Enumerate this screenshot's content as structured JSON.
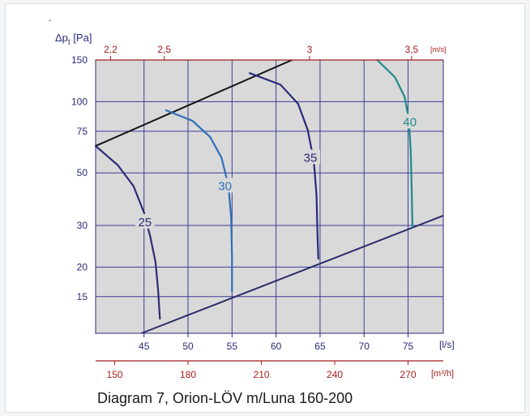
{
  "chart_data": {
    "type": "line",
    "title": "",
    "caption": "Diagram 7, Orion-LÖV m/Luna 160-200",
    "stray_mark": "-",
    "y_axis": {
      "label_prefix": "Δp",
      "label_sub": "t",
      "label_suffix": " [Pa]",
      "scale": "log",
      "range": [
        10.5,
        150
      ],
      "ticks": [
        15,
        20,
        30,
        50,
        75,
        100,
        150
      ],
      "color": "#2a2a7a"
    },
    "x_axis_primary": {
      "unit": "[l/s]",
      "range": [
        39.5,
        79
      ],
      "ticks": [
        45,
        50,
        55,
        60,
        65,
        70,
        75
      ],
      "color": "#2a2a7a"
    },
    "x_axis_volume": {
      "unit": "[m³/h]",
      "ticks": [
        150,
        180,
        210,
        240,
        270
      ],
      "color": "#a51d1d"
    },
    "x_axis_velocity": {
      "unit": "[m/s]",
      "ticks": [
        "2,2",
        "2,5",
        "3",
        "3,5"
      ],
      "color": "#a51d1d"
    },
    "grid": true,
    "plot_background": "#d9d9d9",
    "grid_color": "#3b3b9a",
    "boundary_lines": [
      {
        "name": "upper",
        "color": "#111111",
        "points": [
          [
            39.5,
            65
          ],
          [
            61.8,
            150
          ]
        ]
      },
      {
        "name": "lower",
        "color": "#2a2a6a",
        "points": [
          [
            44.7,
            10.5
          ],
          [
            79,
            33
          ]
        ]
      }
    ],
    "series": [
      {
        "name": "25",
        "color": "#2d2b78",
        "points": [
          [
            39.5,
            65
          ],
          [
            42,
            54
          ],
          [
            43.8,
            44
          ],
          [
            45,
            34
          ],
          [
            45.7,
            27
          ],
          [
            46.3,
            21
          ],
          [
            46.6,
            16
          ],
          [
            46.8,
            12.1
          ]
        ]
      },
      {
        "name": "30",
        "color": "#2f6fb8",
        "points": [
          [
            47.5,
            92
          ],
          [
            50.5,
            83
          ],
          [
            52.5,
            71
          ],
          [
            53.8,
            58
          ],
          [
            54.6,
            44
          ],
          [
            54.9,
            32
          ],
          [
            55,
            22
          ],
          [
            55,
            15.8
          ]
        ]
      },
      {
        "name": "35",
        "color": "#2a2a7a",
        "points": [
          [
            57,
            132
          ],
          [
            60.5,
            118
          ],
          [
            62.5,
            98
          ],
          [
            63.6,
            76
          ],
          [
            64.3,
            56
          ],
          [
            64.6,
            40
          ],
          [
            64.7,
            28
          ],
          [
            64.8,
            21.7
          ]
        ]
      },
      {
        "name": "40",
        "color": "#1e8a86",
        "points": [
          [
            71.5,
            150
          ],
          [
            73.5,
            127
          ],
          [
            74.6,
            105
          ],
          [
            75.1,
            84
          ],
          [
            75.3,
            62
          ],
          [
            75.4,
            44
          ],
          [
            75.5,
            29.6
          ]
        ]
      }
    ]
  }
}
